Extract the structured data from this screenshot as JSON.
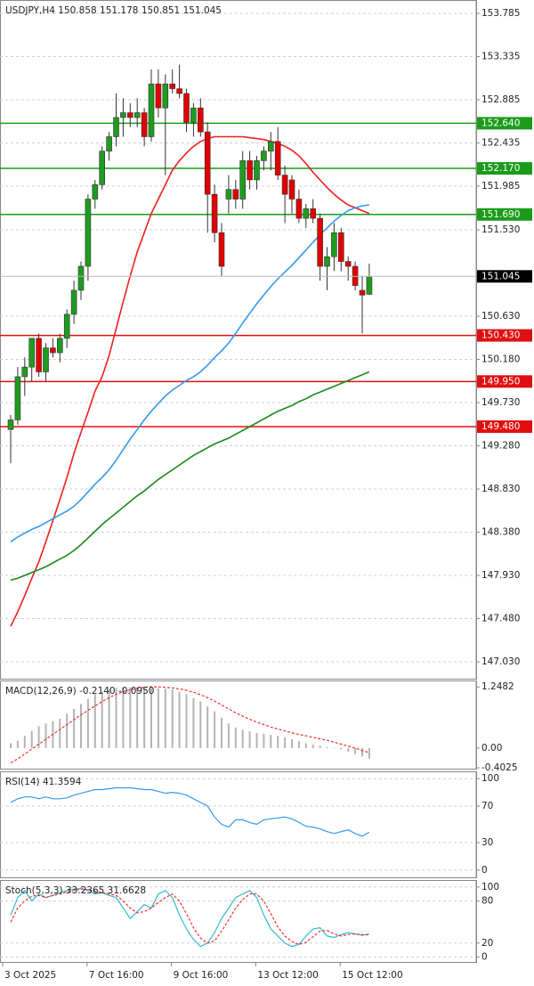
{
  "chart_data": [
    {
      "type": "candlestick",
      "title": "USDJPY,H4  150.858 151.178 150.851 151.045",
      "categories": [
        "3 Oct 2025",
        null,
        null,
        null,
        null,
        null,
        null,
        null,
        null,
        null,
        null,
        null,
        "7 Oct 16:00",
        null,
        null,
        null,
        null,
        null,
        null,
        null,
        null,
        null,
        null,
        null,
        "9 Oct 16:00",
        null,
        null,
        null,
        null,
        null,
        null,
        null,
        null,
        null,
        null,
        null,
        "13 Oct 12:00",
        null,
        null,
        null,
        null,
        null,
        null,
        null,
        null,
        null,
        null,
        null,
        "15 Oct 12:00",
        null,
        null,
        null
      ],
      "open": [
        149.45,
        149.55,
        150.0,
        150.1,
        150.4,
        150.05,
        150.3,
        150.25,
        150.4,
        150.65,
        150.9,
        151.15,
        151.85,
        152.0,
        152.35,
        152.5,
        152.7,
        152.75,
        152.7,
        152.75,
        152.5,
        153.05,
        152.8,
        153.05,
        153.0,
        152.95,
        152.65,
        152.8,
        152.55,
        151.9,
        151.5,
        151.85,
        151.95,
        151.85,
        152.25,
        152.05,
        152.25,
        152.35,
        152.45,
        152.1,
        152.05,
        151.85,
        151.65,
        151.75,
        151.65,
        151.15,
        151.25,
        151.5,
        151.2,
        151.15,
        150.9,
        150.858
      ],
      "high": [
        149.6,
        150.1,
        150.2,
        150.4,
        150.45,
        150.35,
        150.4,
        150.45,
        150.7,
        151.0,
        151.2,
        151.9,
        152.05,
        152.4,
        152.55,
        152.95,
        152.9,
        152.85,
        152.9,
        152.8,
        153.2,
        153.2,
        153.15,
        153.2,
        153.25,
        153.0,
        152.85,
        152.9,
        152.65,
        152.0,
        151.6,
        152.1,
        152.05,
        152.35,
        152.35,
        152.3,
        152.4,
        152.55,
        152.6,
        152.2,
        152.1,
        151.95,
        151.8,
        151.85,
        151.7,
        151.35,
        151.6,
        151.55,
        151.25,
        151.2,
        151.05,
        151.178
      ],
      "low": [
        149.1,
        149.5,
        149.8,
        149.95,
        150.0,
        149.95,
        150.2,
        150.15,
        150.3,
        150.55,
        150.8,
        151.0,
        151.75,
        151.95,
        152.25,
        152.4,
        152.5,
        152.6,
        152.6,
        152.4,
        152.45,
        152.7,
        152.1,
        152.95,
        152.9,
        152.55,
        152.5,
        152.5,
        151.5,
        151.4,
        151.05,
        151.7,
        151.75,
        151.75,
        151.95,
        151.95,
        152.15,
        152.15,
        152.05,
        151.6,
        151.7,
        151.6,
        151.55,
        151.6,
        151.0,
        150.9,
        151.1,
        151.1,
        151.0,
        150.9,
        150.45,
        150.851
      ],
      "close": [
        149.55,
        150.0,
        150.1,
        150.4,
        150.05,
        150.3,
        150.25,
        150.4,
        150.65,
        150.9,
        151.15,
        151.85,
        152.0,
        152.35,
        152.5,
        152.7,
        152.75,
        152.7,
        152.75,
        152.5,
        153.05,
        152.8,
        153.05,
        153.0,
        152.95,
        152.65,
        152.8,
        152.55,
        151.9,
        151.5,
        151.15,
        151.95,
        151.85,
        152.25,
        152.05,
        152.25,
        152.35,
        152.45,
        152.1,
        151.9,
        151.85,
        151.65,
        151.75,
        151.65,
        151.15,
        151.25,
        151.5,
        151.2,
        151.15,
        150.95,
        150.85,
        151.045
      ],
      "up_color": "#1f9b1f",
      "down_color": "#e00000",
      "series": [
        {
          "name": null,
          "color": "#f02020",
          "values": [
            147.4,
            147.55,
            147.72,
            147.9,
            148.07,
            148.28,
            148.5,
            148.72,
            148.95,
            149.2,
            149.42,
            149.63,
            149.85,
            150.0,
            150.22,
            150.5,
            150.78,
            151.05,
            151.3,
            151.5,
            151.7,
            151.85,
            152.0,
            152.15,
            152.25,
            152.33,
            152.4,
            152.45,
            152.48,
            152.5,
            152.5,
            152.5,
            152.5,
            152.5,
            152.49,
            152.48,
            152.47,
            152.45,
            152.43,
            152.4,
            152.36,
            152.3,
            152.22,
            152.13,
            152.05,
            151.97,
            151.9,
            151.84,
            151.79,
            151.76,
            151.73,
            151.7
          ]
        },
        {
          "name": null,
          "color": "#3399ee",
          "values": [
            148.28,
            148.33,
            148.37,
            148.41,
            148.44,
            148.48,
            148.52,
            148.56,
            148.6,
            148.65,
            148.72,
            148.8,
            148.88,
            148.95,
            149.03,
            149.13,
            149.24,
            149.35,
            149.45,
            149.55,
            149.64,
            149.72,
            149.8,
            149.86,
            149.91,
            149.96,
            150.0,
            150.05,
            150.12,
            150.2,
            150.27,
            150.35,
            150.45,
            150.56,
            150.66,
            150.76,
            150.85,
            150.94,
            151.02,
            151.09,
            151.16,
            151.24,
            151.32,
            151.4,
            151.48,
            151.55,
            151.62,
            151.68,
            151.73,
            151.76,
            151.78,
            151.79
          ]
        },
        {
          "name": null,
          "color": "#1a8a1a",
          "values": [
            147.88,
            147.9,
            147.93,
            147.96,
            147.99,
            148.02,
            148.06,
            148.1,
            148.14,
            148.19,
            148.25,
            148.32,
            148.39,
            148.46,
            148.52,
            148.58,
            148.64,
            148.7,
            148.76,
            148.81,
            148.87,
            148.93,
            148.98,
            149.03,
            149.08,
            149.13,
            149.18,
            149.22,
            149.26,
            149.3,
            149.33,
            149.36,
            149.4,
            149.44,
            149.48,
            149.52,
            149.56,
            149.6,
            149.64,
            149.67,
            149.7,
            149.74,
            149.77,
            149.81,
            149.84,
            149.87,
            149.9,
            149.93,
            149.96,
            149.99,
            150.02,
            150.05
          ]
        }
      ],
      "levels": [
        {
          "value": 152.64,
          "label": "152.640",
          "color": "#1a9c1a"
        },
        {
          "value": 152.17,
          "label": "152.170",
          "color": "#1a9c1a"
        },
        {
          "value": 151.69,
          "label": "151.690",
          "color": "#1a9c1a"
        },
        {
          "value": 150.43,
          "label": "150.430",
          "color": "#e01010"
        },
        {
          "value": 149.95,
          "label": "149.950",
          "color": "#e01010"
        },
        {
          "value": 149.48,
          "label": "149.480",
          "color": "#e01010"
        }
      ],
      "ylim": [
        146.854,
        153.924
      ],
      "yticks": [
        153.785,
        153.335,
        152.885,
        152.435,
        151.985,
        {
          "value": 151.53,
          "label": "151.530"
        },
        {
          "value": 150.63,
          "label": "150.630"
        },
        {
          "value": 150.18,
          "label": "150.180"
        },
        {
          "value": 149.73,
          "label": "149.730"
        },
        {
          "value": 149.28,
          "label": "149.280"
        },
        {
          "value": 148.83,
          "label": "148.830"
        },
        {
          "value": 148.38,
          "label": "148.380"
        },
        {
          "value": 147.93,
          "label": "147.930"
        },
        {
          "value": 147.48,
          "label": "147.480"
        },
        {
          "value": 147.03,
          "label": "147.030"
        }
      ],
      "grid": true
    },
    {
      "type": "bar",
      "title": "MACD(12,26,9) -0.2140 -0.0950",
      "color": "#b4b4b4",
      "values": [
        0.1,
        0.15,
        0.25,
        0.35,
        0.45,
        0.5,
        0.55,
        0.6,
        0.7,
        0.8,
        0.9,
        1.0,
        1.1,
        1.15,
        1.2,
        1.23,
        1.24,
        1.24,
        1.23,
        1.22,
        1.22,
        1.22,
        1.21,
        1.2,
        1.15,
        1.1,
        1.02,
        0.95,
        0.85,
        0.75,
        0.62,
        0.5,
        0.42,
        0.37,
        0.34,
        0.31,
        0.29,
        0.27,
        0.25,
        0.22,
        0.18,
        0.14,
        0.1,
        0.07,
        0.05,
        0.02,
        0.0,
        -0.03,
        -0.07,
        -0.12,
        -0.17,
        -0.214
      ],
      "series": [
        {
          "name": null,
          "color": "#f03030",
          "dash": true,
          "values": [
            -0.3,
            -0.22,
            -0.12,
            -0.02,
            0.08,
            0.18,
            0.28,
            0.38,
            0.48,
            0.58,
            0.68,
            0.77,
            0.86,
            0.95,
            1.03,
            1.1,
            1.15,
            1.19,
            1.22,
            1.24,
            1.25,
            1.25,
            1.24,
            1.23,
            1.21,
            1.18,
            1.14,
            1.09,
            1.03,
            0.96,
            0.88,
            0.8,
            0.72,
            0.65,
            0.59,
            0.53,
            0.48,
            0.43,
            0.39,
            0.35,
            0.31,
            0.28,
            0.25,
            0.22,
            0.19,
            0.16,
            0.12,
            0.08,
            0.04,
            0.0,
            -0.05,
            -0.095
          ]
        }
      ],
      "ylim": [
        -0.42,
        1.38
      ],
      "yticks": [
        1.2482,
        {
          "value": 0,
          "label": "0.00"
        },
        -0.4025
      ],
      "grid": false
    },
    {
      "type": "line",
      "title": "RSI(14) 41.3594",
      "series": [
        {
          "name": null,
          "color": "#3399ee",
          "values": [
            74,
            78,
            80,
            80,
            78,
            80,
            78,
            78,
            79,
            82,
            84,
            86,
            88,
            88,
            89,
            90,
            90,
            90,
            89,
            88,
            88,
            86,
            84,
            85,
            84,
            82,
            78,
            74,
            70,
            58,
            50,
            47,
            55,
            55,
            52,
            50,
            55,
            56,
            57,
            58,
            56,
            52,
            48,
            47,
            45,
            42,
            40,
            42,
            44,
            40,
            37,
            41.36
          ]
        }
      ],
      "ylim": [
        -8,
        108
      ],
      "yticks": [
        100,
        70,
        30,
        0
      ],
      "grid": true
    },
    {
      "type": "line",
      "title": "Stoch(5,3,3) 33.2365 31.6628",
      "series": [
        {
          "name": null,
          "color": "#33bbcc",
          "values": [
            60,
            85,
            95,
            80,
            90,
            85,
            88,
            92,
            95,
            97,
            98,
            95,
            90,
            92,
            88,
            85,
            70,
            55,
            65,
            75,
            70,
            90,
            95,
            85,
            60,
            40,
            25,
            15,
            20,
            35,
            55,
            70,
            85,
            90,
            95,
            85,
            60,
            40,
            30,
            20,
            15,
            18,
            30,
            40,
            42,
            30,
            28,
            32,
            35,
            33,
            31,
            33.2365
          ]
        },
        {
          "name": null,
          "color": "#f03030",
          "dash": true,
          "values": [
            50,
            70,
            80,
            87,
            88,
            85,
            88,
            90,
            93,
            95,
            97,
            96,
            94,
            92,
            90,
            88,
            80,
            70,
            63,
            65,
            70,
            78,
            85,
            90,
            80,
            62,
            42,
            27,
            20,
            23,
            37,
            53,
            70,
            82,
            90,
            90,
            80,
            62,
            43,
            30,
            22,
            18,
            21,
            29,
            37,
            38,
            33,
            30,
            32,
            33,
            32,
            31.6628
          ]
        }
      ],
      "ylim": [
        -7,
        110
      ],
      "yticks": [
        100,
        80,
        20,
        0
      ],
      "grid": true
    }
  ]
}
